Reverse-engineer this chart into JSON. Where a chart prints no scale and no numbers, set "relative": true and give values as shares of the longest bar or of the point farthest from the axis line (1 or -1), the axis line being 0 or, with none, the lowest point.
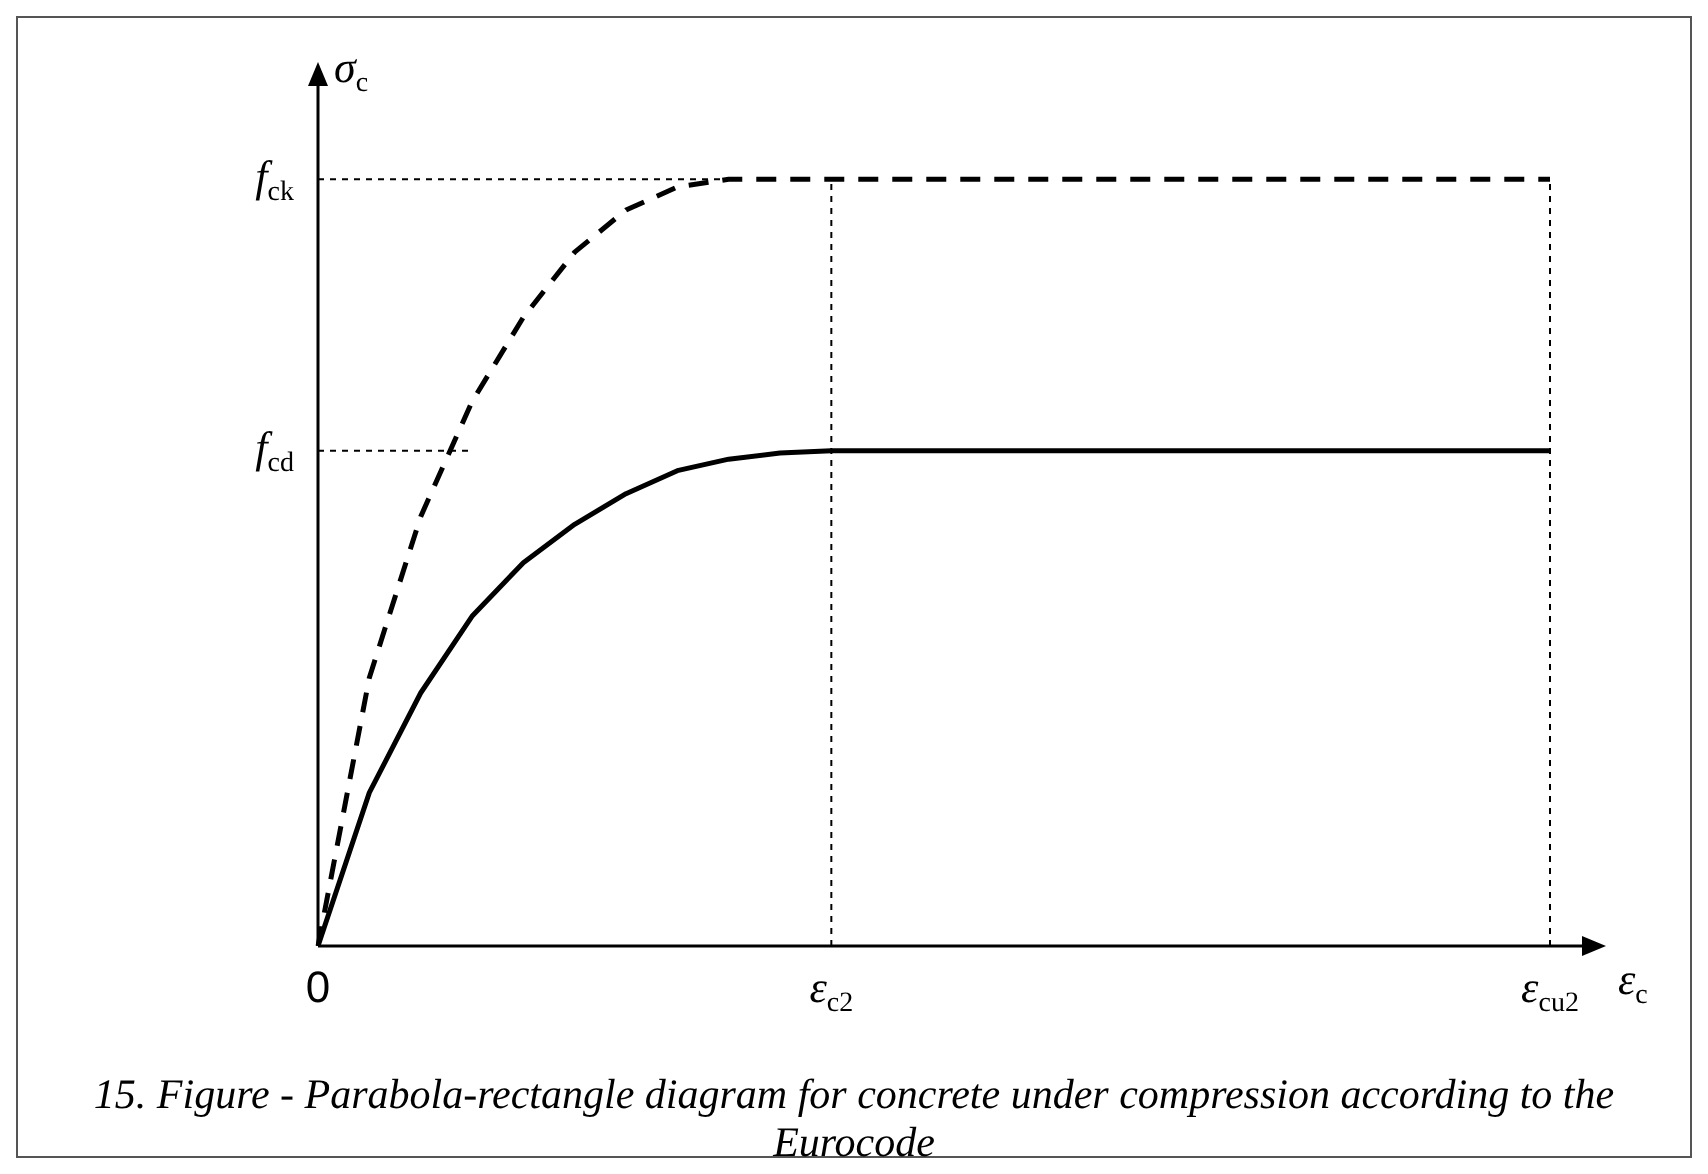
{
  "chart_data": {
    "type": "line",
    "relative": true,
    "xlabel": "ε$_{c}$",
    "ylabel": "σ$_{c}$",
    "annotations": [
      "15. Figure - Parabola-rectangle diagram for concrete under compression according to the Eurocode"
    ],
    "categories": [
      "0",
      null,
      null,
      null,
      null,
      null,
      null,
      null,
      null,
      null,
      "ε$_{c2}$",
      null,
      null,
      null,
      null,
      null,
      null,
      null,
      null,
      null,
      null,
      null,
      null,
      null,
      "ε$_{cu2}$"
    ],
    "legend": false,
    "marker": "none",
    "series": [
      {
        "color": "#000000",
        "line_style": "dashed",
        "values": [
          0,
          0.35,
          0.56,
          0.71,
          0.82,
          0.905,
          0.96,
          0.99,
          1,
          1,
          1,
          1,
          1,
          1,
          1,
          1,
          1,
          1,
          1,
          1,
          1,
          1,
          1,
          1,
          1
        ]
      },
      {
        "color": "#000000",
        "line_style": "solid",
        "values": [
          0,
          0.2,
          0.33,
          0.43,
          0.5,
          0.55,
          0.59,
          0.62,
          0.635,
          0.643,
          0.646,
          0.646,
          0.646,
          0.646,
          0.646,
          0.646,
          0.646,
          0.646,
          0.646,
          0.646,
          0.646,
          0.646,
          0.646,
          0.646,
          0.646
        ]
      }
    ],
    "ref_lines": [
      {
        "axis": "y",
        "value": 1,
        "label": "f$_{ck}$",
        "line_style": "dotted"
      },
      {
        "axis": "y",
        "value": 0.646,
        "label": "f$_{cd}$",
        "line_style": "dotted"
      },
      {
        "axis": "x",
        "value": "ε$_{c2}$",
        "line_style": "dotted"
      },
      {
        "axis": "x",
        "value": "ε$_{cu2}$",
        "line_style": "dotted"
      }
    ]
  }
}
